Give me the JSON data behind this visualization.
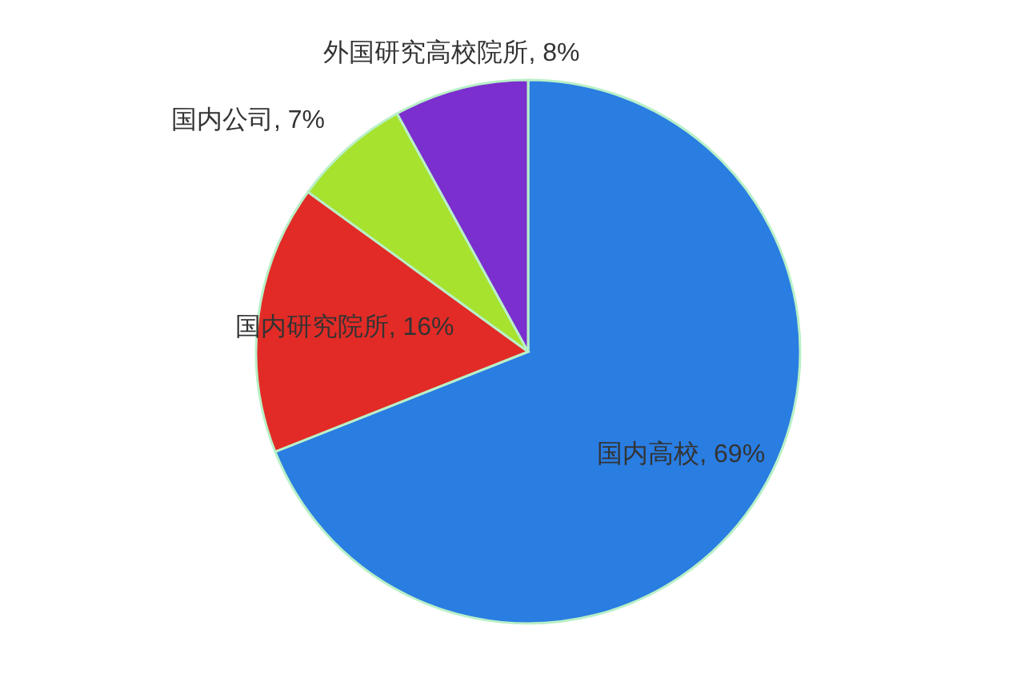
{
  "chart_data": {
    "type": "pie",
    "categories": [
      "国内高校",
      "国内研究院所",
      "国内公司",
      "外国研究高校院所"
    ],
    "values": [
      69,
      16,
      7,
      8
    ],
    "colors": [
      "#2a7de1",
      "#e22b26",
      "#a6e22e",
      "#7b2fce"
    ],
    "value_labels": [
      "69%",
      "16%",
      "7%",
      "8%"
    ]
  }
}
